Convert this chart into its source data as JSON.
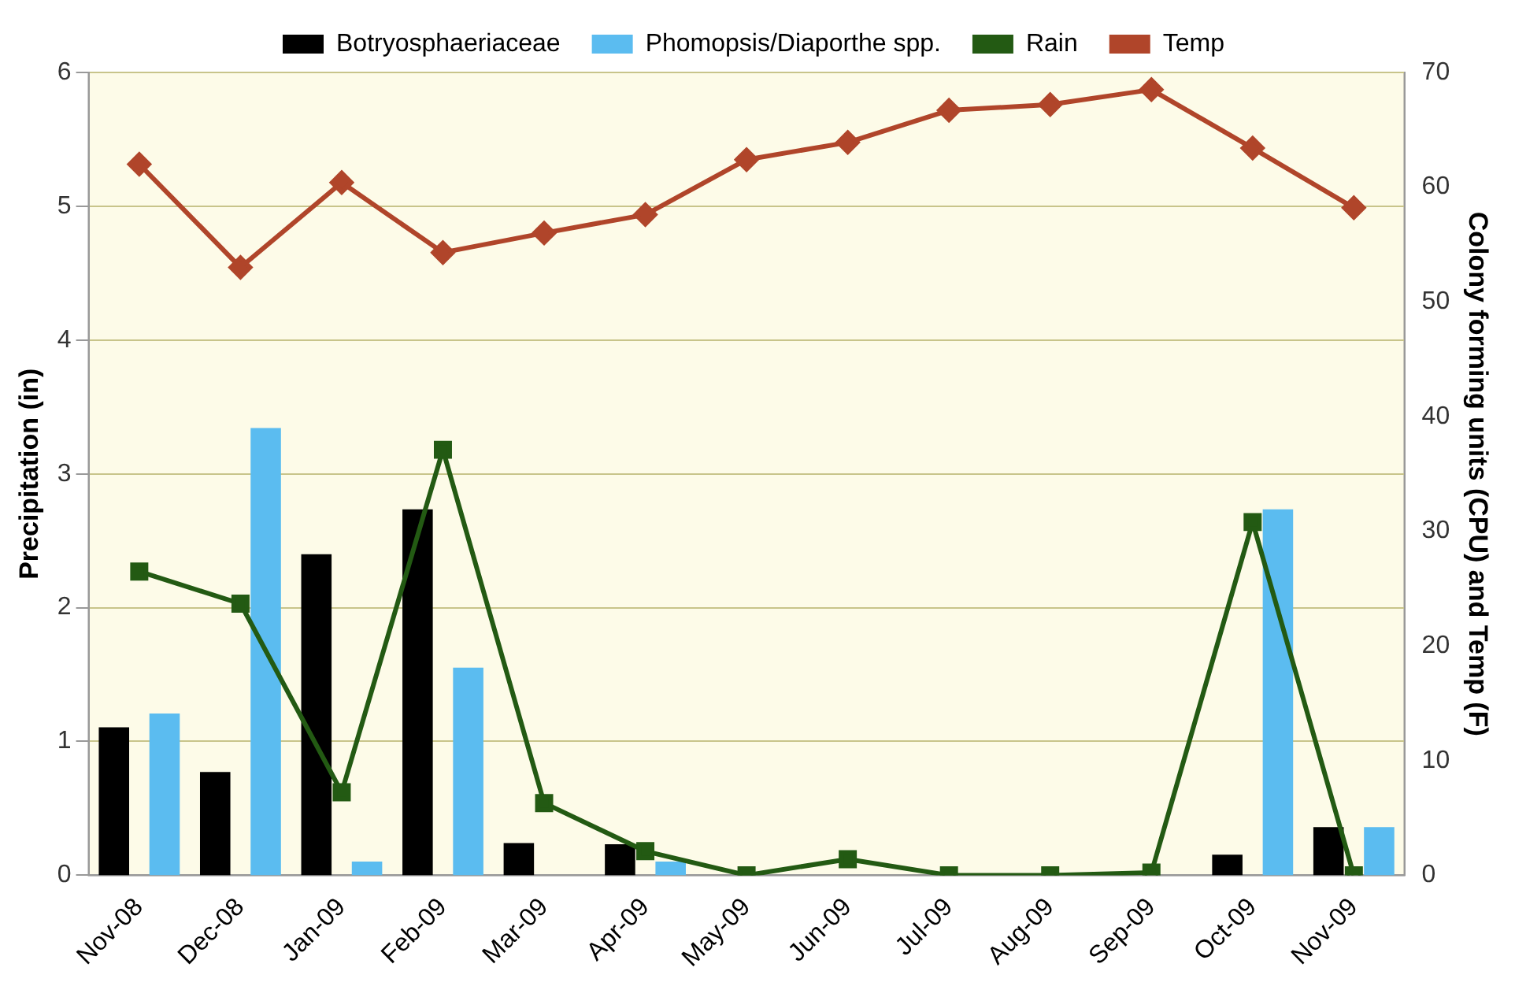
{
  "chart_data": {
    "type": "bar",
    "ylabel": "Precipitation (in)",
    "y2label": "Colony forming units (CPU) and Temp (F)",
    "categories": [
      "Nov-08",
      "Dec-08",
      "Jan-09",
      "Feb-09",
      "Mar-09",
      "Apr-09",
      "May-09",
      "Jun-09",
      "Jul-09",
      "Aug-09",
      "Sep-09",
      "Oct-09",
      "Nov-09"
    ],
    "series": [
      {
        "name": "Botryosphaeriaceae",
        "axis": "y2",
        "color": "#000000",
        "values": [
          12.9,
          9,
          28,
          31.9,
          2.8,
          2.7,
          0,
          0,
          0,
          0,
          0,
          1.8,
          4.2
        ]
      },
      {
        "name": "Phomopsis/Diaporthe spp.",
        "axis": "y2",
        "color": "#5bbcf0",
        "values": [
          14.1,
          39,
          1.2,
          18.1,
          0,
          1.2,
          0,
          0,
          0,
          0,
          0,
          31.9,
          4.2
        ]
      },
      {
        "name": "Rain",
        "type": "line",
        "marker": "square",
        "color": "#235a13",
        "values": [
          2.27,
          2.03,
          0.62,
          3.18,
          0.54,
          0.18,
          0,
          0.12,
          0,
          0,
          0.02,
          2.64,
          0
        ]
      },
      {
        "name": "Temp",
        "type": "line",
        "marker": "diamond",
        "axis": "y2",
        "color": "#b0452a",
        "values": [
          62,
          53,
          60.4,
          54.3,
          56,
          57.6,
          62.4,
          63.9,
          66.7,
          67.2,
          68.5,
          63.4,
          58.2
        ]
      }
    ],
    "ylim": [
      0,
      6
    ],
    "yticks": [
      0,
      1,
      2,
      3,
      4,
      5,
      6
    ],
    "y2lim": [
      0,
      70
    ],
    "y2ticks": [
      0,
      10,
      20,
      30,
      40,
      50,
      60,
      70
    ],
    "grid": "y",
    "legend": "top"
  }
}
